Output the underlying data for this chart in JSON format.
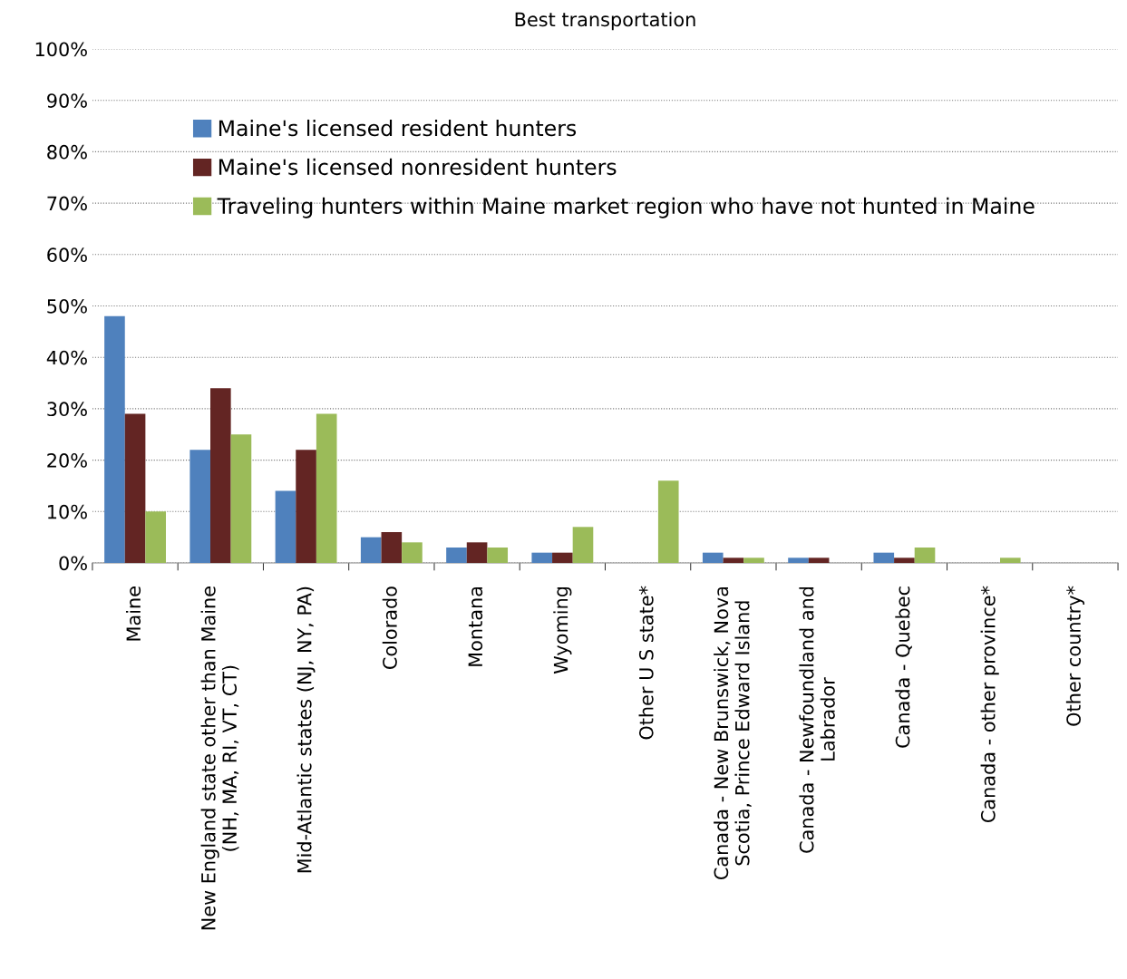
{
  "chart_data": {
    "type": "bar",
    "title": "Best transportation",
    "categories": [
      "Maine",
      "New England state other than Maine\n(NH, MA, RI, VT, CT)",
      "Mid-Atlantic states (NJ, NY, PA)",
      "Colorado",
      "Montana",
      "Wyoming",
      "Other U S state*",
      "Canada - New Brunswick, Nova\nScotia, Prince Edward Island",
      "Canada - Newfoundland and\nLabrador",
      "Canada - Quebec",
      "Canada - other province*",
      "Other country*"
    ],
    "series": [
      {
        "name": "Maine's licensed resident hunters",
        "color": "#4f81bd",
        "values": [
          48,
          22,
          14,
          5,
          3,
          2,
          0,
          2,
          1,
          2,
          0,
          0
        ]
      },
      {
        "name": "Maine's licensed nonresident hunters",
        "color": "#632523",
        "values": [
          29,
          34,
          22,
          6,
          4,
          2,
          0,
          1,
          1,
          1,
          0,
          0
        ]
      },
      {
        "name": "Traveling hunters within Maine market region who have not hunted in Maine",
        "color": "#9bbb59",
        "values": [
          10,
          25,
          29,
          4,
          3,
          7,
          16,
          1,
          0,
          3,
          1,
          0
        ]
      }
    ],
    "ylim": [
      0,
      100
    ],
    "yticks": [
      {
        "value": 0,
        "label": "0%"
      },
      {
        "value": 10,
        "label": "10%"
      },
      {
        "value": 20,
        "label": "20%"
      },
      {
        "value": 30,
        "label": "30%"
      },
      {
        "value": 40,
        "label": "40%"
      },
      {
        "value": 50,
        "label": "50%"
      },
      {
        "value": 60,
        "label": "60%"
      },
      {
        "value": 70,
        "label": "70%"
      },
      {
        "value": 80,
        "label": "80%"
      },
      {
        "value": 90,
        "label": "90%"
      },
      {
        "value": 100,
        "label": "100%"
      }
    ],
    "grid": "y",
    "legend": "top"
  }
}
